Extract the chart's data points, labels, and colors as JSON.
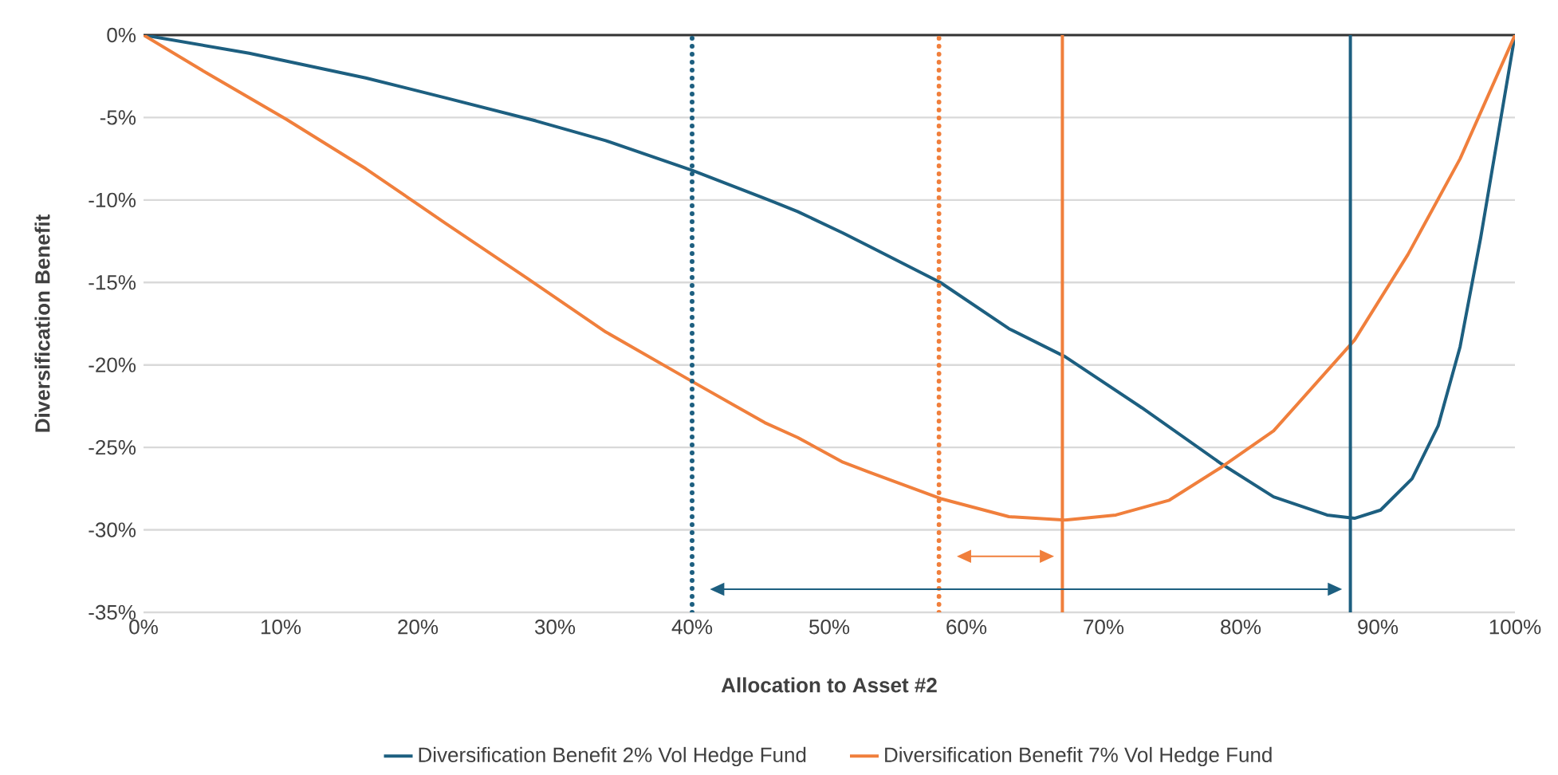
{
  "chart_data": {
    "type": "line",
    "xlabel": "Allocation to Asset #2",
    "ylabel": "Diversification Benefit",
    "x": [
      0,
      4.6,
      7.7,
      10.4,
      16.2,
      22.0,
      27.9,
      28.6,
      33.7,
      40,
      45.3,
      47.7,
      51,
      52.9,
      58.1,
      63.1,
      67.2,
      70.9,
      72.8,
      74.8,
      78.6,
      82.4,
      86.3,
      88.3,
      90.2,
      92.2,
      92.5,
      94.4,
      96.0,
      97.5,
      98.8,
      100
    ],
    "series": [
      {
        "name": "Diversification Benefit 2% Vol Hedge Fund",
        "color": "#1d5f80",
        "values": [
          0,
          null,
          -1.1,
          null,
          -2.6,
          -3.8,
          null,
          -5.2,
          -6.4,
          -8.2,
          -9.9,
          -10.7,
          -12.0,
          -12.8,
          -15.0,
          -17.8,
          -19.5,
          null,
          -22.6,
          null,
          -26.0,
          -28.0,
          -29.1,
          -29.3,
          -28.8,
          null,
          -26.9,
          -23.7,
          -18.9,
          -12.3,
          -5.9,
          0
        ]
      },
      {
        "name": "Diversification Benefit 7% Vol Hedge Fund",
        "color": "#f07f3c",
        "values": [
          0,
          -2.3,
          null,
          -5.1,
          -8.1,
          -11.4,
          -14.7,
          null,
          -18.0,
          -21.0,
          -23.5,
          -24.4,
          -25.9,
          -26.5,
          -28.1,
          -29.2,
          -29.4,
          -29.1,
          null,
          -28.2,
          -26.2,
          -24.0,
          null,
          -18.5,
          null,
          -13.3,
          null,
          null,
          -7.5,
          null,
          null,
          0
        ]
      }
    ],
    "xlim": [
      0,
      100
    ],
    "xticks": [
      {
        "value": 0,
        "label": "0%"
      },
      {
        "value": 10,
        "label": "10%"
      },
      {
        "value": 20,
        "label": "20%"
      },
      {
        "value": 30,
        "label": "30%"
      },
      {
        "value": 40,
        "label": "40%"
      },
      {
        "value": 50,
        "label": "50%"
      },
      {
        "value": 60,
        "label": "60%"
      },
      {
        "value": 70,
        "label": "70%"
      },
      {
        "value": 80,
        "label": "80%"
      },
      {
        "value": 90,
        "label": "90%"
      },
      {
        "value": 100,
        "label": "100%"
      }
    ],
    "ylim": [
      -35,
      0
    ],
    "yticks": [
      {
        "value": -35,
        "label": "-35%"
      },
      {
        "value": -30,
        "label": "-30%"
      },
      {
        "value": -25,
        "label": "-25%"
      },
      {
        "value": -20,
        "label": "-20%"
      },
      {
        "value": -15,
        "label": "-15%"
      },
      {
        "value": -10,
        "label": "-10%"
      },
      {
        "value": -5,
        "label": "-5%"
      },
      {
        "value": 0,
        "label": "0%"
      }
    ],
    "ref_lines": [
      {
        "axis": "x",
        "value": 40,
        "color": "#1d5f80",
        "line_style": "dotted"
      },
      {
        "axis": "x",
        "value": 58,
        "color": "#f07f3c",
        "line_style": "dotted"
      },
      {
        "axis": "x",
        "value": 67,
        "color": "#f07f3c",
        "line_style": "solid"
      },
      {
        "axis": "x",
        "value": 88,
        "color": "#1d5f80",
        "line_style": "solid"
      }
    ],
    "grid": "y",
    "legend": "bottom",
    "marker": "none",
    "line_style": "solid"
  }
}
